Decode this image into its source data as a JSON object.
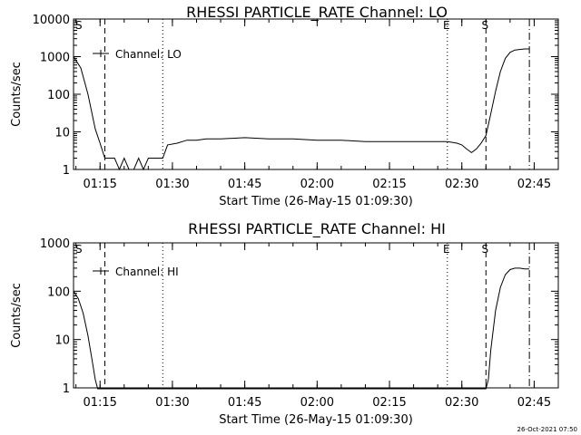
{
  "footer_timestamp": "26-Oct-2021 07:50",
  "marker_lines": [
    {
      "time": "01:09:30",
      "style": "dashed",
      "label": "S"
    },
    {
      "time": "01:16:00",
      "style": "dashed",
      "label": ""
    },
    {
      "time": "01:28:00",
      "style": "dotted",
      "label": ""
    },
    {
      "time": "02:27:00",
      "style": "dotted",
      "label": "E"
    },
    {
      "time": "02:35:00",
      "style": "dashed",
      "label": "S"
    },
    {
      "time": "02:44:00",
      "style": "dashdot",
      "label": ""
    }
  ],
  "chart_data": [
    {
      "type": "line",
      "title": "RHESSI PARTICLE_RATE Channel: LO",
      "xlabel": "Start Time (26-May-15 01:09:30)",
      "ylabel": "Counts/sec",
      "y_scale": "log",
      "ylim": [
        1,
        10000
      ],
      "xlim": [
        "01:09:30",
        "02:50:00"
      ],
      "x_tick_labels": [
        "01:15",
        "01:30",
        "01:45",
        "02:00",
        "02:15",
        "02:30",
        "02:45"
      ],
      "y_tick_labels": [
        "1",
        "10",
        "100",
        "1000",
        "10000"
      ],
      "legend": {
        "label": "Channel: LO",
        "position": "top-left"
      },
      "series": [
        {
          "name": "Channel: LO",
          "x": [
            "01:09:30",
            "01:11:00",
            "01:12:30",
            "01:14:00",
            "01:15:00",
            "01:16:00",
            "01:18:00",
            "01:19:00",
            "01:20:00",
            "01:21:00",
            "01:22:00",
            "01:23:00",
            "01:24:00",
            "01:25:00",
            "01:26:00",
            "01:27:00",
            "01:28:00",
            "01:29:00",
            "01:31:00",
            "01:33:00",
            "01:35:00",
            "01:37:00",
            "01:40:00",
            "01:45:00",
            "01:50:00",
            "01:55:00",
            "02:00:00",
            "02:05:00",
            "02:10:00",
            "02:15:00",
            "02:20:00",
            "02:25:00",
            "02:27:00",
            "02:29:00",
            "02:30:00",
            "02:31:00",
            "02:32:00",
            "02:33:00",
            "02:34:00",
            "02:35:00",
            "02:36:00",
            "02:37:00",
            "02:38:00",
            "02:39:00",
            "02:40:00",
            "02:41:00",
            "02:42:00",
            "02:43:00",
            "02:44:00"
          ],
          "y": [
            1000,
            500,
            100,
            12,
            5,
            2,
            2,
            1,
            2,
            1,
            1,
            2,
            1,
            2,
            2,
            2,
            2,
            4.5,
            5,
            6,
            6,
            6.5,
            6.5,
            7,
            6.5,
            6.5,
            6,
            6,
            5.5,
            5.5,
            5.5,
            5.5,
            5.5,
            5,
            4.5,
            3.5,
            2.8,
            3.5,
            5,
            8,
            30,
            120,
            400,
            900,
            1300,
            1500,
            1550,
            1600,
            1600
          ]
        }
      ]
    },
    {
      "type": "line",
      "title": "RHESSI PARTICLE_RATE Channel: HI",
      "xlabel": "Start Time (26-May-15 01:09:30)",
      "ylabel": "Counts/sec",
      "y_scale": "log",
      "ylim": [
        1,
        1000
      ],
      "xlim": [
        "01:09:30",
        "02:50:00"
      ],
      "x_tick_labels": [
        "01:15",
        "01:30",
        "01:45",
        "02:00",
        "02:15",
        "02:30",
        "02:45"
      ],
      "y_tick_labels": [
        "1",
        "10",
        "100",
        "1000"
      ],
      "legend": {
        "label": "Channel: HI",
        "position": "top-left"
      },
      "series": [
        {
          "name": "Channel: HI",
          "x": [
            "01:09:30",
            "01:10:30",
            "01:11:30",
            "01:12:30",
            "01:13:30",
            "01:14:00",
            "01:14:30",
            "02:35:00",
            "02:35:30",
            "02:36:00",
            "02:37:00",
            "02:38:00",
            "02:39:00",
            "02:40:00",
            "02:41:00",
            "02:42:00",
            "02:43:00",
            "02:44:00"
          ],
          "y": [
            100,
            70,
            35,
            12,
            3,
            1.5,
            0.8,
            0.8,
            1.5,
            6,
            40,
            120,
            220,
            280,
            300,
            300,
            290,
            290
          ]
        }
      ]
    }
  ]
}
